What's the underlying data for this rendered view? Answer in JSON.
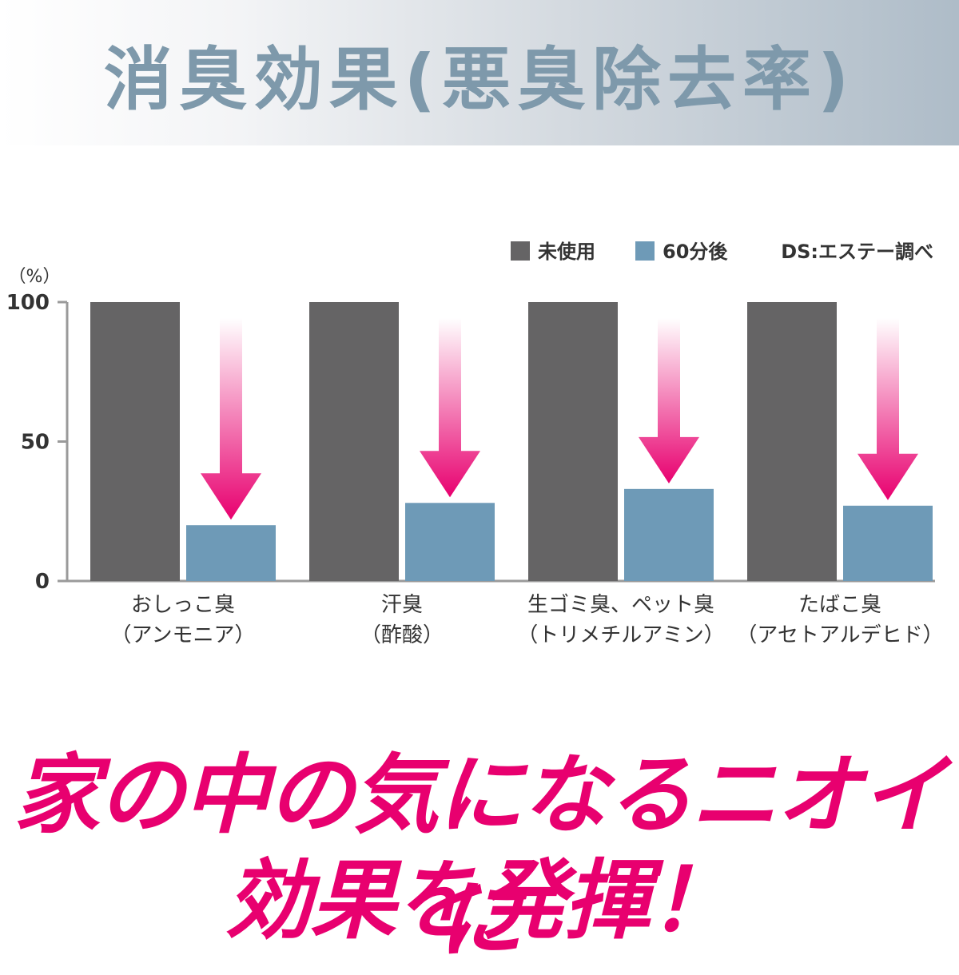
{
  "header": {
    "title": "消臭効果(悪臭除去率)"
  },
  "chart_data": {
    "type": "bar",
    "categories": [
      [
        "おしっこ臭",
        "（アンモニア）"
      ],
      [
        "汗臭",
        "（酢酸）"
      ],
      [
        "生ゴミ臭、ペット臭",
        "（トリメチルアミン）"
      ],
      [
        "たばこ臭",
        "（アセトアルデヒド）"
      ]
    ],
    "series": [
      {
        "name": "未使用",
        "values": [
          100,
          100,
          100,
          100
        ],
        "color": "#656465"
      },
      {
        "name": "60分後",
        "values": [
          20,
          28,
          33,
          27
        ],
        "color": "#6e9ab7"
      }
    ],
    "ylabel": "（%）",
    "ylim": [
      0,
      100
    ],
    "yticks": [
      0,
      50,
      100
    ],
    "legend_position": "top-right",
    "source_note": "DS:エステー調べ",
    "annotation": "arrows-down",
    "arrow_color": "#e8006f"
  },
  "tagline": {
    "line1": "家の中の気になるニオイに",
    "line2": "効果を発揮！"
  }
}
